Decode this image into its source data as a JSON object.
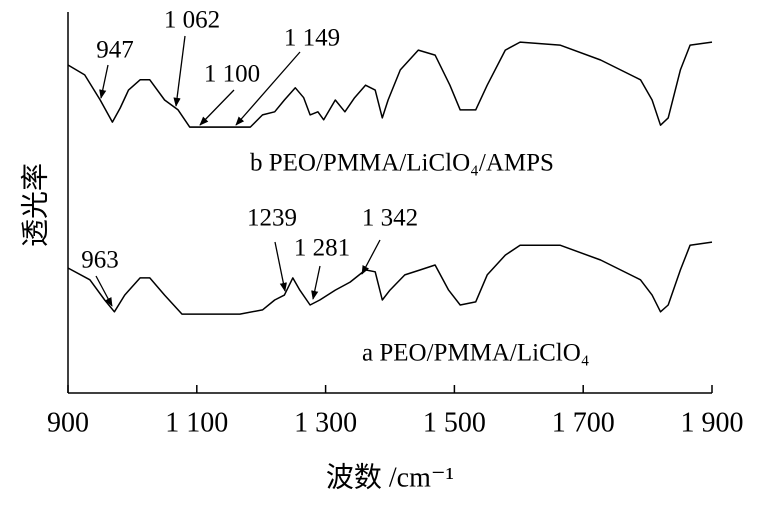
{
  "chart_data": {
    "type": "line",
    "xlabel": "波数 /cm⁻¹",
    "ylabel": "透光率",
    "xlim": [
      900,
      1900
    ],
    "ylim": [
      0,
      100
    ],
    "xticks": [
      900,
      {
        "value": 1100,
        "label": "1 100"
      },
      {
        "value": 1300,
        "label": "1 300"
      },
      {
        "value": 1500,
        "label": "1 500"
      },
      {
        "value": 1700,
        "label": "1 700"
      },
      {
        "value": 1900,
        "label": "1 900"
      }
    ],
    "color": "#000000",
    "series": [
      {
        "name": "b PEO/PMMA/LiClO₄/AMPS",
        "x": [
          900,
          926,
          950,
          969,
          981,
          994,
          1012,
          1027,
          1050,
          1071,
          1089,
          1183,
          1202,
          1221,
          1236,
          1253,
          1266,
          1276,
          1288,
          1297,
          1315,
          1330,
          1345,
          1362,
          1377,
          1388,
          1397,
          1416,
          1444,
          1470,
          1493,
          1509,
          1533,
          1551,
          1579,
          1602,
          1664,
          1727,
          1789,
          1807,
          1820,
          1832,
          1851,
          1866,
          1900
        ],
        "values": [
          86.1,
          83.5,
          76.9,
          71.1,
          74.8,
          79.5,
          82.2,
          82.2,
          76.9,
          74.3,
          69.8,
          69.8,
          73.0,
          73.8,
          76.9,
          80.1,
          77.5,
          73.0,
          73.8,
          71.7,
          76.9,
          73.8,
          77.5,
          80.8,
          79.5,
          72.2,
          76.9,
          84.8,
          90.0,
          88.7,
          80.8,
          74.3,
          74.3,
          80.8,
          90.0,
          92.1,
          91.3,
          87.4,
          82.2,
          76.9,
          70.3,
          72.2,
          84.8,
          91.3,
          92.1
        ],
        "annotations": [
          "947",
          "1 062",
          "1 100",
          "1 149"
        ]
      },
      {
        "name": "a PEO/PMMA/LiClO₄",
        "x": [
          900,
          934,
          957,
          972,
          988,
          1012,
          1027,
          1050,
          1077,
          1167,
          1202,
          1221,
          1236,
          1249,
          1260,
          1276,
          1291,
          1315,
          1338,
          1362,
          1377,
          1388,
          1400,
          1423,
          1447,
          1470,
          1491,
          1509,
          1533,
          1551,
          1579,
          1602,
          1664,
          1727,
          1789,
          1807,
          1820,
          1832,
          1851,
          1866,
          1900
        ],
        "values": [
          32.8,
          29.7,
          24.4,
          21.3,
          25.7,
          30.2,
          30.2,
          25.7,
          20.7,
          20.7,
          21.8,
          24.4,
          25.7,
          30.2,
          27.0,
          23.1,
          24.4,
          27.0,
          29.1,
          32.3,
          31.8,
          24.4,
          27.0,
          31.0,
          32.3,
          33.6,
          27.0,
          23.1,
          23.9,
          31.0,
          36.2,
          38.8,
          38.8,
          34.9,
          29.7,
          25.7,
          21.3,
          23.1,
          32.3,
          38.8,
          39.6
        ],
        "annotations": [
          "963",
          "1239",
          "1 281",
          "1 342"
        ]
      }
    ]
  }
}
